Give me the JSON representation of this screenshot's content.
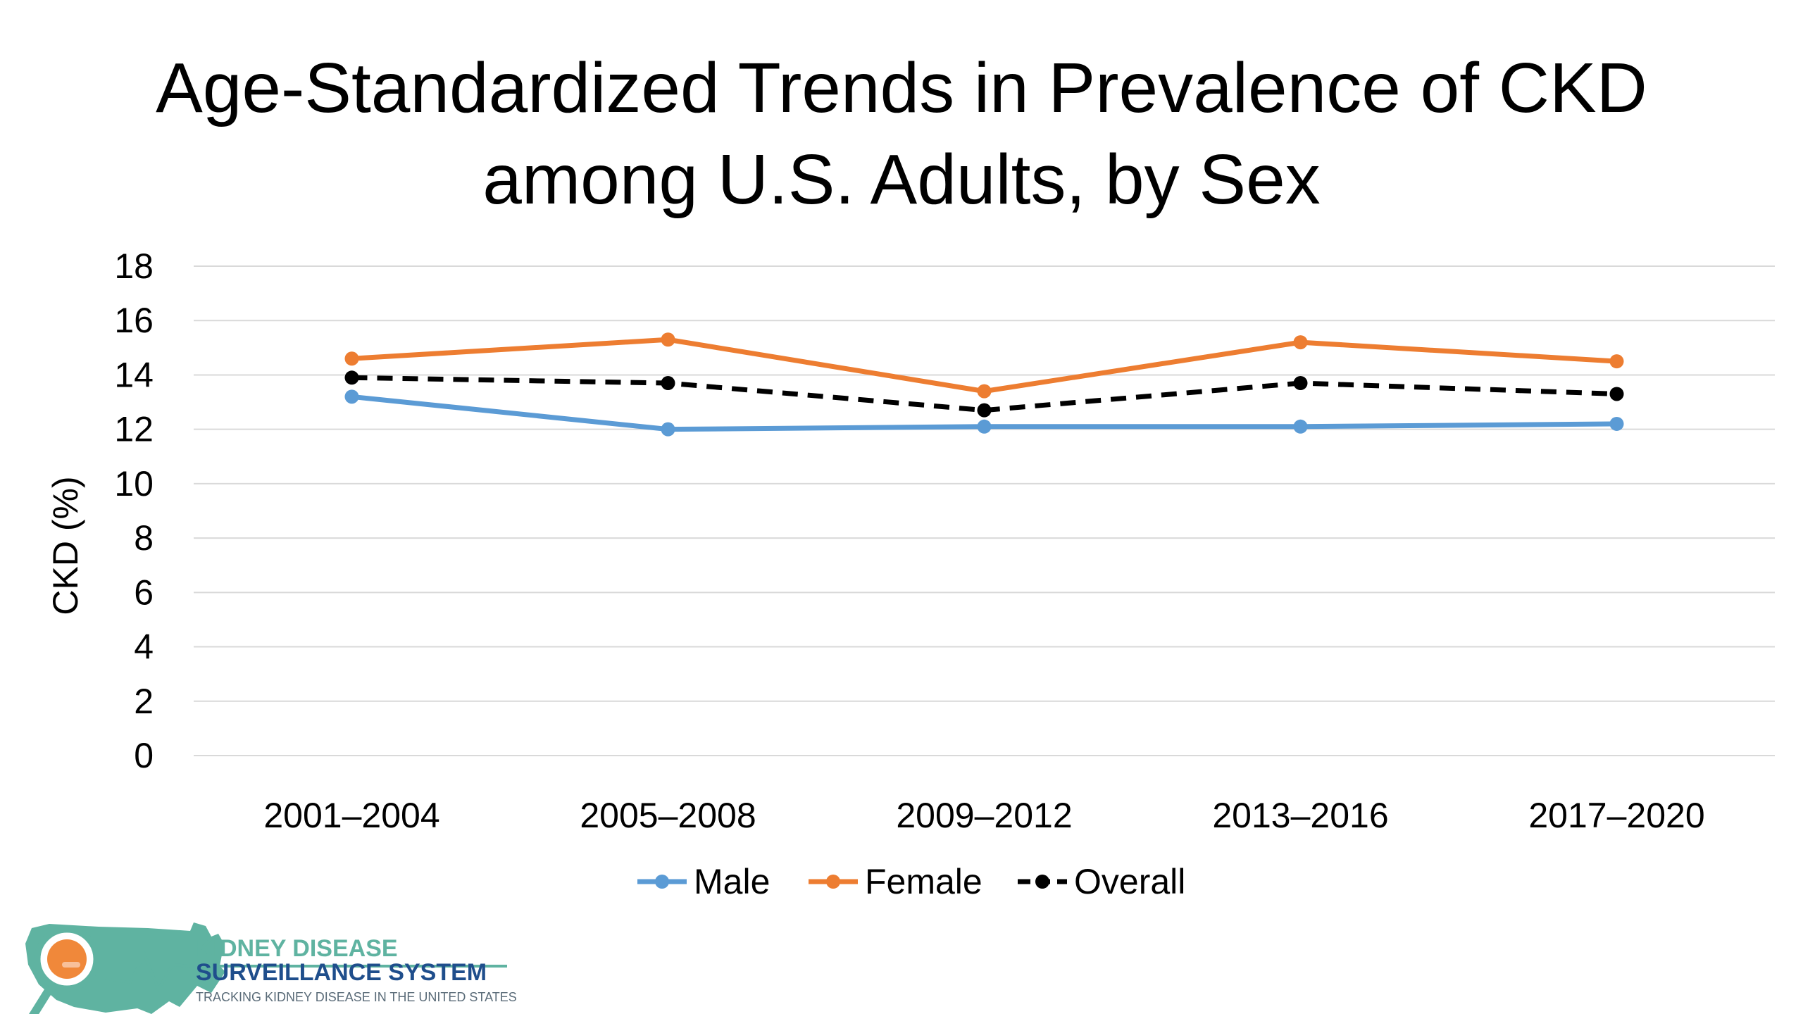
{
  "title_line1": "Age-Standardized Trends in Prevalence of CKD",
  "title_line2": "among U.S. Adults, by Sex",
  "chart_data": {
    "type": "line",
    "title": "Age-Standardized Trends in Prevalence of CKD among U.S. Adults, by Sex",
    "xlabel": "",
    "ylabel": "CKD (%)",
    "categories": [
      "2001–2004",
      "2005–2008",
      "2009–2012",
      "2013–2016",
      "2017–2020"
    ],
    "ylim": [
      0,
      18
    ],
    "yticks": [
      0,
      2,
      4,
      6,
      8,
      10,
      12,
      14,
      16,
      18
    ],
    "grid": true,
    "legend": "bottom",
    "series": [
      {
        "name": "Male",
        "color": "#5b9bd5",
        "dash": "solid",
        "values": [
          13.2,
          12.0,
          12.1,
          12.1,
          12.2
        ]
      },
      {
        "name": "Female",
        "color": "#ed7d31",
        "dash": "solid",
        "values": [
          14.6,
          15.3,
          13.4,
          15.2,
          14.5
        ]
      },
      {
        "name": "Overall",
        "color": "#000000",
        "dash": "dashed",
        "values": [
          13.9,
          13.7,
          12.7,
          13.7,
          13.3
        ]
      }
    ]
  },
  "logo": {
    "line1": "KIDNEY DISEASE",
    "line2": "SURVEILLANCE SYSTEM",
    "tagline": "TRACKING KIDNEY DISEASE IN THE UNITED STATES",
    "color_teal": "#5fb3a1",
    "color_navy": "#1f4e8c",
    "color_orange": "#f0883a"
  }
}
